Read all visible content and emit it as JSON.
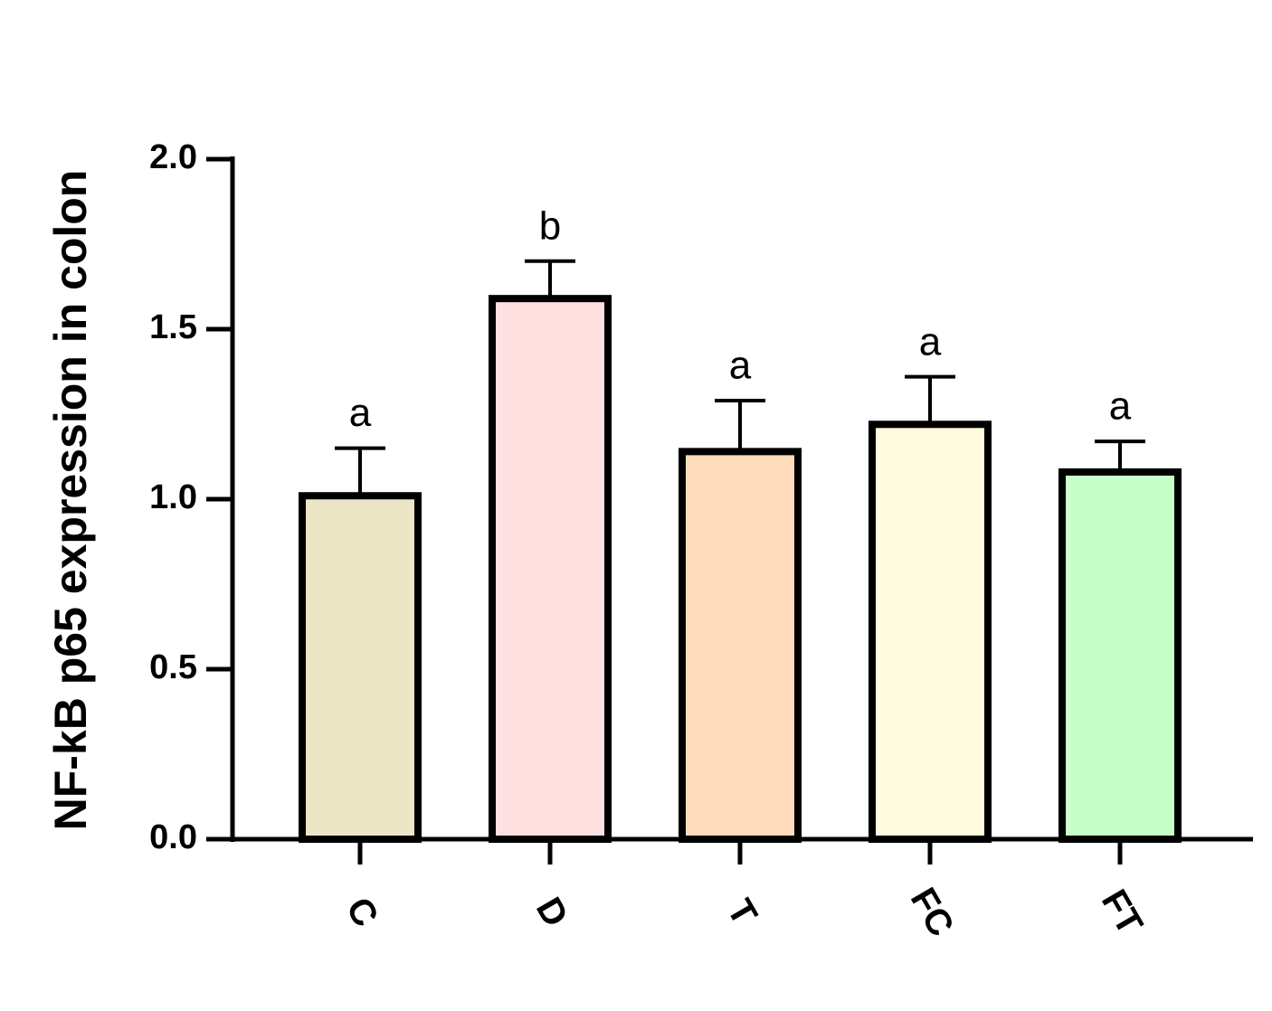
{
  "chart_data": {
    "type": "bar",
    "y_label": "NF-kB p65 expression in colon",
    "categories": [
      "C",
      "D",
      "T",
      "FC",
      "FT"
    ],
    "values": [
      1.01,
      1.59,
      1.14,
      1.22,
      1.08
    ],
    "errors": [
      0.14,
      0.11,
      0.15,
      0.14,
      0.09
    ],
    "annotations": [
      "a",
      "b",
      "a",
      "a",
      "a"
    ],
    "colors": [
      "#ece5c6",
      "#ffe0e0",
      "#ffdcbc",
      "#fffbdc",
      "#c8ffc8"
    ],
    "ylim": [
      0,
      2
    ],
    "yticks": [
      {
        "value": 0,
        "label": "0.0"
      },
      0.5,
      {
        "value": 1,
        "label": "1.0"
      },
      1.5,
      {
        "value": 2,
        "label": "2.0"
      }
    ],
    "grid": false
  }
}
